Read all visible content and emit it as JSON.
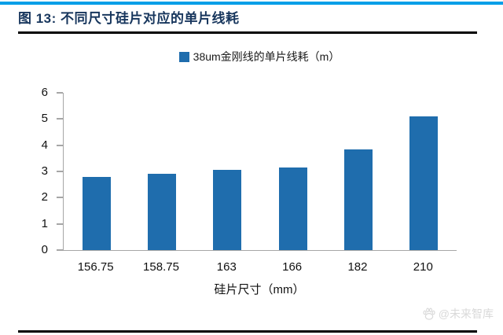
{
  "header": {
    "title": "图 13:  不同尺寸硅片对应的单片线耗"
  },
  "colors": {
    "top_rule": "#009FE8",
    "title_text": "#17365D",
    "rule": "#000000",
    "axis": "#A6A6A6",
    "bar": "#1F6DAD",
    "watermark": "#D9D9D9"
  },
  "chart_data": {
    "type": "bar",
    "title": "不同尺寸硅片对应的单片线耗",
    "legend": [
      "38um金刚线的单片线耗（m）"
    ],
    "legend_position": "top-center",
    "categories": [
      "156.75",
      "158.75",
      "163",
      "166",
      "182",
      "210"
    ],
    "values": [
      2.8,
      2.9,
      3.05,
      3.15,
      3.85,
      5.1
    ],
    "xlabel": "硅片尺寸（mm）",
    "ylabel": "",
    "ylim": [
      0,
      6
    ],
    "yticks": [
      0,
      1,
      2,
      3,
      4,
      5,
      6
    ],
    "grid": false,
    "plot_background": "#ffffff"
  },
  "watermark": {
    "icon": "paw-icon",
    "text": "@未来智库"
  }
}
